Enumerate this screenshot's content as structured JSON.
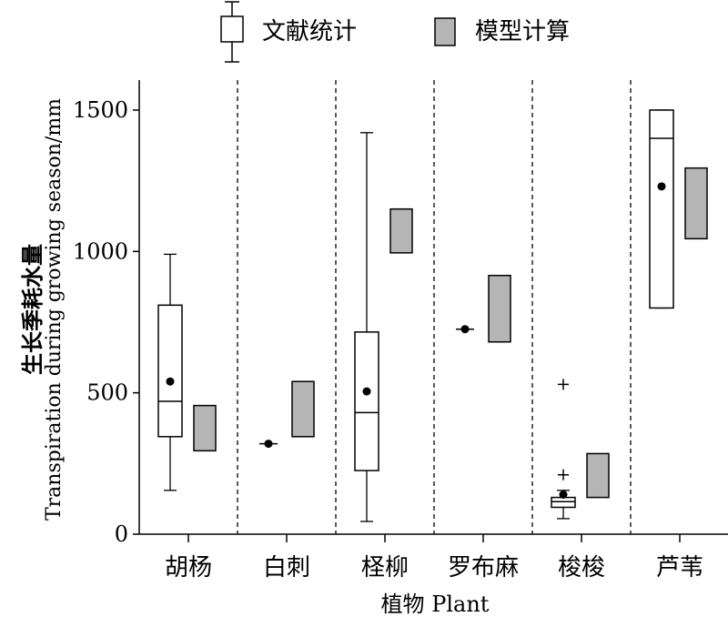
{
  "legend": {
    "items": [
      {
        "label": "文献统计",
        "kind": "boxplot"
      },
      {
        "label": "模型计算",
        "kind": "range",
        "color": "#b5b5b5"
      }
    ]
  },
  "chart_data": {
    "type": "boxplot",
    "ylabel_cn": "生长季耗水量",
    "ylabel_en": "Transpiration during growing season/mm",
    "xlabel": "植物 Plant",
    "ylim": [
      0,
      1650
    ],
    "yticks": [
      "0",
      "500",
      "1000",
      "1500"
    ],
    "categories": [
      "胡杨",
      "白刺",
      "柽柳",
      "罗布麻",
      "梭梭",
      "芦苇"
    ],
    "series": [
      {
        "name": "文献统计",
        "boxes": [
          {
            "category": "胡杨",
            "min": 155,
            "q1": 345,
            "median": 470,
            "q3": 810,
            "max": 990,
            "mean": 540
          },
          {
            "category": "白刺",
            "min": 320,
            "q1": 320,
            "median": 320,
            "q3": 320,
            "max": 320,
            "mean": 320
          },
          {
            "category": "柽柳",
            "min": 45,
            "q1": 225,
            "median": 430,
            "q3": 715,
            "max": 1420,
            "mean": 505
          },
          {
            "category": "罗布麻",
            "min": 725,
            "q1": 725,
            "median": 725,
            "q3": 725,
            "max": 725,
            "mean": 725
          },
          {
            "category": "梭梭",
            "min": 55,
            "q1": 95,
            "median": 115,
            "q3": 130,
            "max": 155,
            "mean": 140,
            "outliers": [
              210,
              530
            ]
          },
          {
            "category": "芦苇",
            "min": 800,
            "q1": 800,
            "median": 1400,
            "q3": 1500,
            "max": 1500,
            "mean": 1230
          }
        ]
      },
      {
        "name": "模型计算",
        "ranges": [
          {
            "category": "胡杨",
            "low": 295,
            "high": 455
          },
          {
            "category": "白刺",
            "low": 345,
            "high": 540
          },
          {
            "category": "柽柳",
            "low": 995,
            "high": 1150
          },
          {
            "category": "罗布麻",
            "low": 680,
            "high": 915
          },
          {
            "category": "梭梭",
            "low": 130,
            "high": 285
          },
          {
            "category": "芦苇",
            "low": 1045,
            "high": 1295
          }
        ]
      }
    ],
    "grid": false,
    "separators": "dashed",
    "legend_position": "top"
  }
}
